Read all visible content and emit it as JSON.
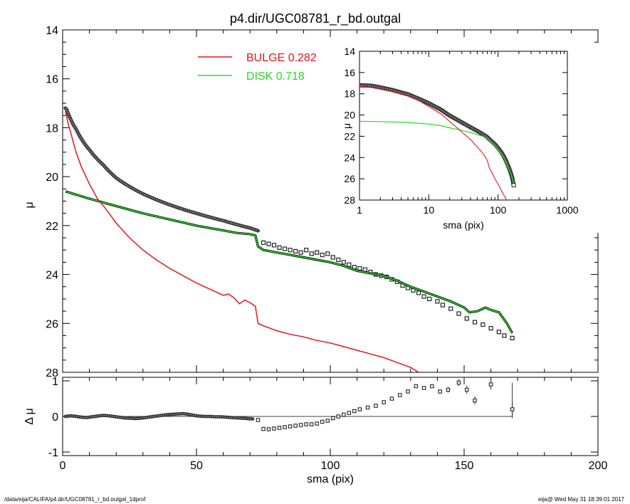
{
  "title": "p4.dir/UGC08781_r_bd.outgal",
  "footer_left": "/data/eija/CALIFA/p4.dir/UGC08781_r_bd.outgal_1dprof",
  "footer_right": "eija@  Wed May 31 18:39:01 2017",
  "colors": {
    "bulge": "#e8141c",
    "disk": "#22dd22",
    "data": "#222222",
    "axis": "#000000"
  },
  "chart_data": [
    {
      "id": "main",
      "type": "line",
      "xlim": [
        0,
        200
      ],
      "ylim": [
        28,
        14
      ],
      "ylabel": "μ",
      "y_ticks": [
        14,
        16,
        18,
        20,
        22,
        24,
        26,
        28
      ],
      "legend": [
        {
          "name": "BULGE",
          "value": "0.282",
          "color": "#e8141c"
        },
        {
          "name": "DISK",
          "value": "0.718",
          "color": "#22dd22"
        }
      ],
      "series": [
        {
          "name": "BULGE",
          "x": [
            1,
            2,
            3,
            5,
            7,
            10,
            13,
            16,
            20,
            25,
            30,
            35,
            40,
            45,
            50,
            55,
            60,
            62,
            64,
            66,
            68,
            70,
            72,
            73,
            75,
            80,
            85,
            90,
            95,
            100,
            105,
            110,
            115,
            120,
            125,
            130,
            133
          ],
          "y": [
            17.3,
            17.8,
            18.2,
            19.0,
            19.6,
            20.3,
            20.9,
            21.3,
            21.9,
            22.5,
            23.0,
            23.4,
            23.75,
            24.05,
            24.35,
            24.6,
            24.85,
            24.8,
            24.95,
            25.2,
            25.05,
            25.15,
            25.3,
            26.0,
            26.1,
            26.3,
            26.45,
            26.55,
            26.7,
            26.8,
            26.95,
            27.1,
            27.25,
            27.4,
            27.6,
            27.8,
            28.0
          ]
        },
        {
          "name": "DISK",
          "x": [
            1,
            10,
            20,
            30,
            40,
            50,
            60,
            65,
            70,
            72,
            73,
            75,
            80,
            85,
            90,
            95,
            100,
            105,
            110,
            115,
            120,
            125,
            130,
            135,
            140,
            145,
            150,
            152,
            155,
            158,
            160,
            163,
            166,
            168
          ],
          "y": [
            20.6,
            20.9,
            21.2,
            21.5,
            21.75,
            22.0,
            22.2,
            22.3,
            22.35,
            22.4,
            22.85,
            23.0,
            23.1,
            23.2,
            23.3,
            23.4,
            23.5,
            23.65,
            23.85,
            23.95,
            24.05,
            24.25,
            24.5,
            24.7,
            24.9,
            25.1,
            25.35,
            25.55,
            25.5,
            25.35,
            25.45,
            25.55,
            26.0,
            26.4
          ]
        },
        {
          "name": "data",
          "x": [
            75,
            77,
            79,
            81,
            83,
            85,
            87,
            89,
            91,
            93,
            95,
            97,
            99,
            101,
            103,
            105,
            107,
            109,
            111,
            113,
            115,
            117,
            119,
            121,
            123,
            125,
            127,
            129,
            131,
            133,
            135,
            137,
            140,
            142,
            145,
            148,
            151,
            154,
            157,
            160,
            163,
            165,
            168
          ],
          "y": [
            22.7,
            22.75,
            22.8,
            22.9,
            22.95,
            23.0,
            23.05,
            23.1,
            23.0,
            23.15,
            23.1,
            23.2,
            23.15,
            23.3,
            23.4,
            23.5,
            23.6,
            23.7,
            23.75,
            23.8,
            23.9,
            24.0,
            24.05,
            24.1,
            24.2,
            24.3,
            24.45,
            24.55,
            24.65,
            24.75,
            24.9,
            25.0,
            25.1,
            25.25,
            25.4,
            25.6,
            25.8,
            25.95,
            26.05,
            26.2,
            26.35,
            26.5,
            26.6
          ]
        }
      ]
    },
    {
      "id": "inset",
      "type": "line",
      "xlabel": "sma (pix)",
      "ylabel": "μ",
      "xscale": "log",
      "xlim": [
        1,
        1000
      ],
      "ylim": [
        28,
        14
      ],
      "x_ticks": [
        1,
        10,
        100,
        1000
      ],
      "y_ticks": [
        14,
        16,
        18,
        20,
        22,
        24,
        26,
        28
      ],
      "series": [
        {
          "name": "BULGE",
          "x": [
            1,
            1.5,
            2,
            3,
            5,
            7,
            10,
            15,
            20,
            30,
            40,
            50,
            60,
            65,
            70,
            75,
            80,
            90,
            100,
            110,
            120,
            133
          ],
          "y": [
            17.3,
            17.4,
            17.55,
            17.8,
            18.2,
            18.6,
            19.2,
            19.9,
            20.6,
            21.6,
            22.3,
            23.0,
            23.6,
            23.9,
            24.3,
            25.0,
            25.3,
            26.0,
            26.5,
            27.0,
            27.5,
            28.0
          ]
        },
        {
          "name": "DISK",
          "x": [
            1,
            2,
            5,
            10,
            15,
            20,
            30,
            40,
            50,
            60,
            70,
            80,
            90,
            100,
            120,
            150,
            170
          ],
          "y": [
            20.6,
            20.62,
            20.7,
            20.85,
            21.0,
            21.2,
            21.45,
            21.65,
            21.85,
            22.0,
            22.2,
            22.6,
            22.9,
            23.3,
            24.0,
            25.4,
            26.4
          ]
        },
        {
          "name": "data",
          "x": [
            1,
            1.5,
            2,
            3,
            5,
            7,
            10,
            15,
            20,
            30,
            40,
            50,
            60,
            70,
            80,
            90,
            100,
            110,
            120,
            130,
            140,
            150,
            160,
            168
          ],
          "y": [
            17.2,
            17.25,
            17.4,
            17.65,
            18.05,
            18.45,
            18.9,
            19.5,
            20.05,
            20.7,
            21.15,
            21.5,
            21.8,
            22.1,
            22.45,
            22.75,
            23.1,
            23.45,
            23.85,
            24.3,
            24.8,
            25.3,
            25.9,
            26.6
          ]
        }
      ]
    },
    {
      "id": "residual",
      "type": "scatter",
      "xlabel": "sma (pix)",
      "ylabel": "Δ μ",
      "xlim": [
        0,
        200
      ],
      "ylim": [
        -1.1,
        1.1
      ],
      "x_ticks": [
        0,
        50,
        100,
        150,
        200
      ],
      "y_ticks": [
        -1,
        0,
        1
      ],
      "series": [
        {
          "name": "residual",
          "x": [
            1,
            3,
            5,
            7,
            9,
            11,
            13,
            15,
            17,
            19,
            21,
            23,
            25,
            27,
            29,
            31,
            33,
            35,
            37,
            39,
            41,
            43,
            45,
            47,
            49,
            51,
            53,
            55,
            57,
            59,
            61,
            63,
            65,
            67,
            69,
            71,
            73,
            75,
            77,
            79,
            81,
            83,
            85,
            87,
            89,
            91,
            93,
            95,
            97,
            99,
            101,
            103,
            105,
            107,
            109,
            111,
            114,
            117,
            120,
            123,
            126,
            129,
            132,
            135,
            138,
            141,
            144,
            148,
            151,
            154,
            160,
            168
          ],
          "y": [
            0.0,
            0.02,
            0.0,
            -0.02,
            -0.03,
            -0.01,
            0.01,
            0.03,
            0.02,
            0.0,
            -0.02,
            -0.04,
            -0.05,
            -0.06,
            -0.05,
            -0.03,
            -0.01,
            0.01,
            0.03,
            0.05,
            0.06,
            0.07,
            0.08,
            0.06,
            0.03,
            0.01,
            0.0,
            0.0,
            -0.01,
            -0.01,
            -0.02,
            -0.03,
            -0.04,
            -0.05,
            -0.06,
            -0.07,
            -0.1,
            -0.35,
            -0.36,
            -0.34,
            -0.32,
            -0.3,
            -0.28,
            -0.26,
            -0.24,
            -0.22,
            -0.22,
            -0.2,
            -0.15,
            -0.12,
            -0.05,
            0.0,
            0.05,
            0.1,
            0.15,
            0.2,
            0.25,
            0.3,
            0.4,
            0.5,
            0.6,
            0.7,
            0.85,
            0.8,
            0.85,
            0.7,
            0.75,
            0.95,
            0.75,
            0.45,
            0.9,
            0.2
          ],
          "err": [
            0,
            0,
            0,
            0,
            0,
            0,
            0,
            0,
            0,
            0,
            0,
            0,
            0,
            0,
            0,
            0,
            0,
            0,
            0,
            0,
            0,
            0,
            0,
            0,
            0,
            0,
            0,
            0,
            0,
            0,
            0,
            0,
            0,
            0,
            0,
            0,
            0,
            0,
            0,
            0,
            0,
            0,
            0,
            0,
            0,
            0,
            0,
            0,
            0,
            0,
            0,
            0,
            0,
            0,
            0,
            0,
            0,
            0,
            0,
            0,
            0,
            0,
            0,
            0,
            0,
            0.06,
            0.08,
            0.1,
            0.12,
            0.12,
            0.15,
            0.2
          ]
        }
      ]
    }
  ]
}
